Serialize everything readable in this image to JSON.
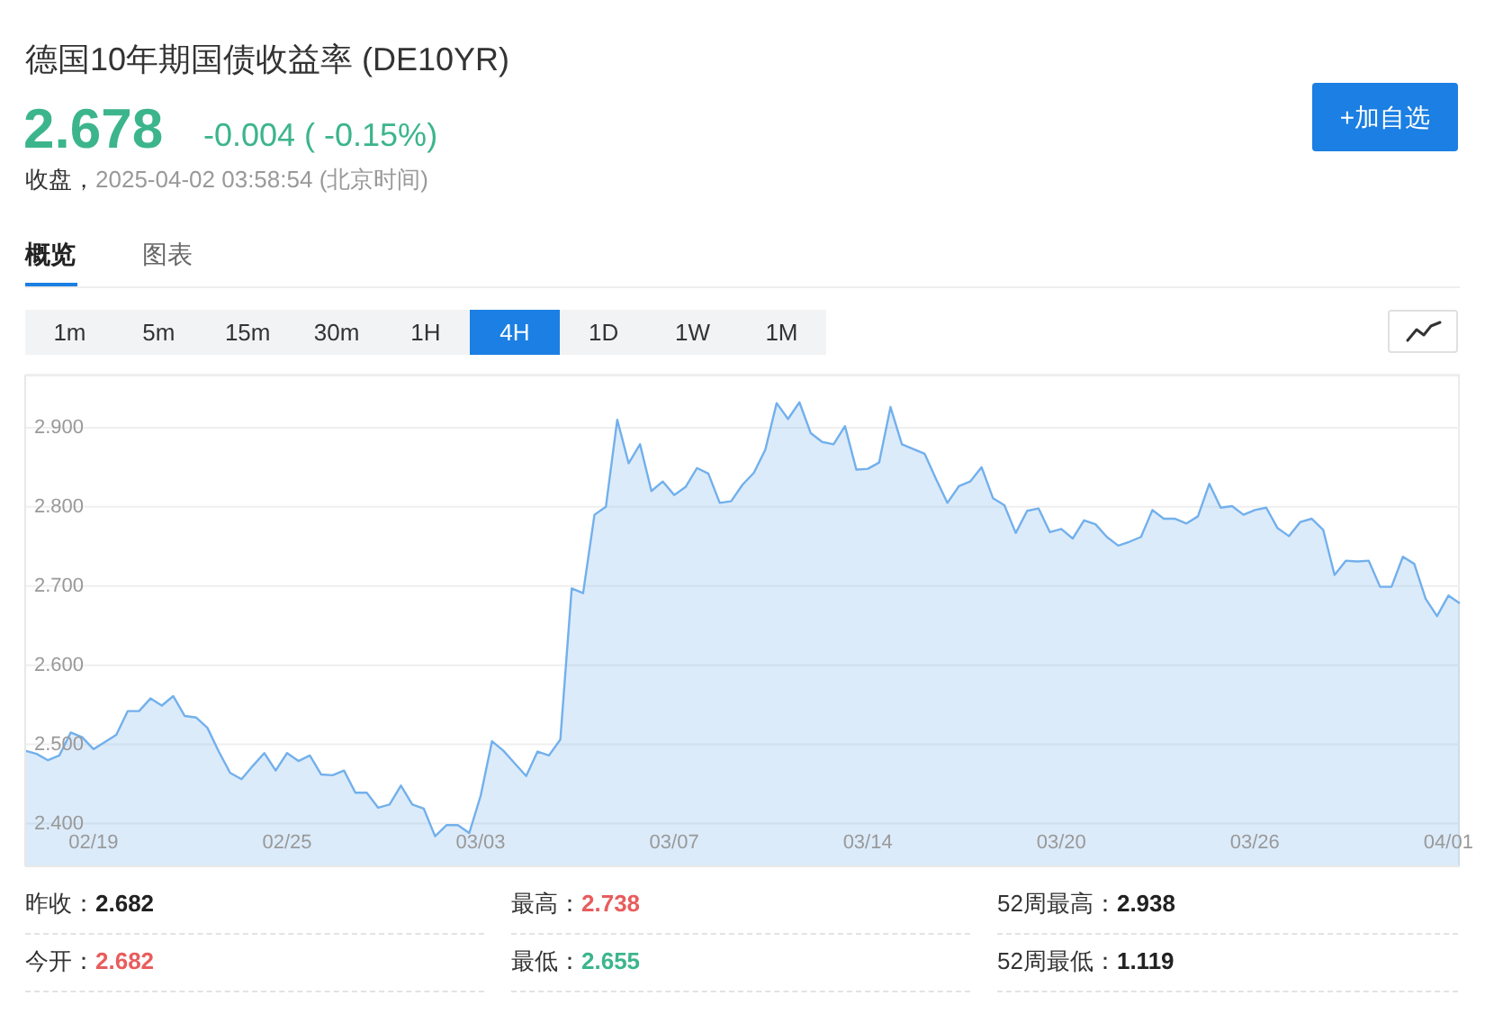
{
  "chart_data": {
    "type": "area",
    "title": "德国10年期国债收益率 (DE10YR)",
    "annotations": [
      "2.678",
      "-0.004 ( -0.15%)",
      "收盘，",
      "2025-04-02 03:58:54 (北京时间)",
      "+加自选",
      "概览",
      "图表",
      "1m",
      "5m",
      "15m",
      "30m",
      "1H",
      "4H",
      "1D",
      "1W",
      "1M",
      "昨收：",
      "2.682",
      "最高：",
      "2.738",
      "52周最高：",
      "2.938",
      "今开：",
      "2.682",
      "最低：",
      "2.655",
      "52周最低：",
      "1.119"
    ],
    "categories": [
      null,
      null,
      null,
      null,
      null,
      null,
      "02/19",
      null,
      null,
      null,
      null,
      null,
      null,
      null,
      null,
      null,
      null,
      null,
      null,
      null,
      null,
      null,
      null,
      "02/25",
      null,
      null,
      null,
      null,
      null,
      null,
      null,
      null,
      null,
      null,
      null,
      null,
      null,
      null,
      null,
      null,
      "03/03",
      null,
      null,
      null,
      null,
      null,
      null,
      null,
      null,
      null,
      null,
      null,
      null,
      null,
      null,
      null,
      null,
      "03/07",
      null,
      null,
      null,
      null,
      null,
      null,
      null,
      null,
      null,
      null,
      null,
      null,
      null,
      null,
      null,
      null,
      "03/14",
      null,
      null,
      null,
      null,
      null,
      null,
      null,
      null,
      null,
      null,
      null,
      null,
      null,
      null,
      null,
      null,
      "03/20",
      null,
      null,
      null,
      null,
      null,
      null,
      null,
      null,
      null,
      null,
      null,
      null,
      null,
      null,
      null,
      null,
      "03/26",
      null,
      null,
      null,
      null,
      null,
      null,
      null,
      null,
      null,
      null,
      null,
      null,
      null,
      null,
      null,
      null,
      "04/01",
      null
    ],
    "values": [
      2.492,
      2.488,
      2.48,
      2.486,
      2.515,
      2.509,
      2.494,
      2.503,
      2.512,
      2.542,
      2.542,
      2.558,
      2.549,
      2.561,
      2.536,
      2.534,
      2.521,
      2.491,
      2.464,
      2.456,
      2.473,
      2.489,
      2.467,
      2.489,
      2.479,
      2.486,
      2.462,
      2.461,
      2.467,
      2.439,
      2.439,
      2.42,
      2.424,
      2.448,
      2.424,
      2.419,
      2.384,
      2.398,
      2.398,
      2.388,
      2.435,
      2.504,
      2.492,
      2.476,
      2.46,
      2.491,
      2.486,
      2.506,
      2.697,
      2.691,
      2.79,
      2.8,
      2.91,
      2.855,
      2.879,
      2.82,
      2.832,
      2.815,
      2.825,
      2.849,
      2.842,
      2.805,
      2.807,
      2.828,
      2.843,
      2.872,
      2.931,
      2.911,
      2.932,
      2.893,
      2.882,
      2.879,
      2.902,
      2.847,
      2.848,
      2.856,
      2.926,
      2.879,
      2.873,
      2.867,
      2.835,
      2.805,
      2.826,
      2.832,
      2.85,
      2.811,
      2.802,
      2.767,
      2.795,
      2.798,
      2.768,
      2.772,
      2.76,
      2.783,
      2.778,
      2.762,
      2.751,
      2.756,
      2.762,
      2.796,
      2.785,
      2.785,
      2.779,
      2.788,
      2.829,
      2.799,
      2.801,
      2.79,
      2.796,
      2.799,
      2.773,
      2.763,
      2.781,
      2.785,
      2.771,
      2.714,
      2.732,
      2.731,
      2.732,
      2.699,
      2.699,
      2.737,
      2.728,
      2.684,
      2.662,
      2.688,
      2.678
    ],
    "color": "#72b0ec",
    "ylim": [
      2.346,
      2.967
    ],
    "yticks": [
      {
        "value": 2.4,
        "label": "2.400"
      },
      {
        "value": 2.5,
        "label": "2.500"
      },
      {
        "value": 2.6,
        "label": "2.600"
      },
      {
        "value": 2.7,
        "label": "2.700"
      },
      {
        "value": 2.8,
        "label": "2.800"
      },
      {
        "value": 2.9,
        "label": "2.900"
      }
    ],
    "grid": "y"
  }
}
